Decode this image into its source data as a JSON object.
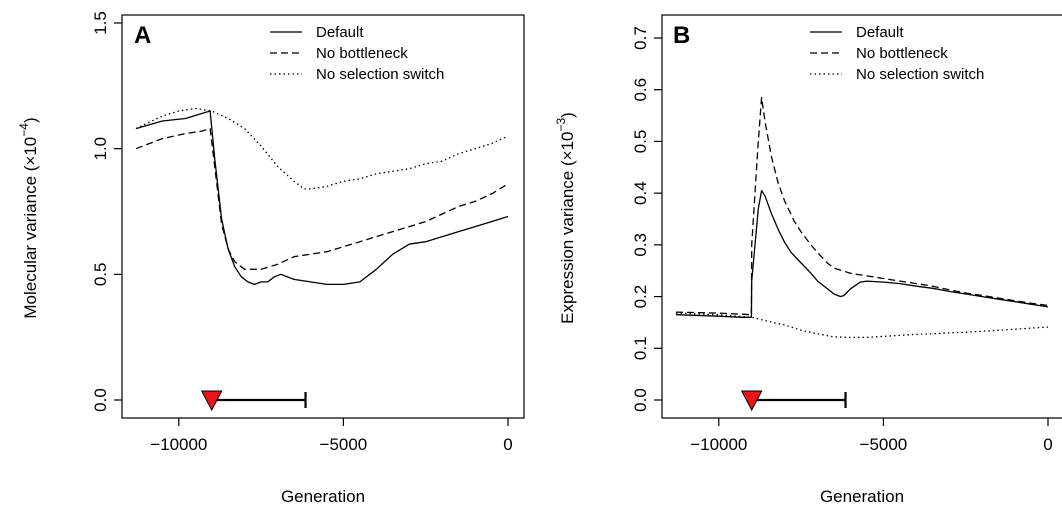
{
  "chart_data": [
    {
      "type": "line",
      "panel_label": "A",
      "xlabel": "Generation",
      "ylabel": "Molecular variance (",
      "ylabel_multiplier": "×10",
      "ylabel_exponent": "−4",
      "ylabel_close": ")",
      "xlim": [
        -11300,
        0
      ],
      "ylim": [
        0,
        1.5
      ],
      "x_ticks": [
        -10000,
        -5000,
        0
      ],
      "x_tick_labels": [
        "−10000",
        "−5000",
        "0"
      ],
      "y_ticks": [
        0,
        0.5,
        1.0,
        1.5
      ],
      "y_tick_labels": [
        "0.0",
        "0.5",
        "1.0",
        "1.5"
      ],
      "legend_position": "top-right",
      "event_marker": {
        "x": -9000,
        "y": 0
      },
      "event_interval": [
        -9000,
        -6150
      ],
      "series": [
        {
          "name": "Default",
          "style": "solid",
          "x": [
            -11300,
            -10500,
            -9800,
            -9300,
            -9050,
            -8900,
            -8700,
            -8500,
            -8300,
            -8100,
            -7900,
            -7700,
            -7500,
            -7300,
            -7100,
            -6900,
            -6500,
            -6000,
            -5500,
            -5000,
            -4500,
            -4000,
            -3500,
            -3000,
            -2500,
            -2000,
            -1500,
            -1000,
            -500,
            0
          ],
          "y": [
            1.08,
            1.11,
            1.12,
            1.14,
            1.15,
            0.95,
            0.72,
            0.6,
            0.53,
            0.49,
            0.47,
            0.46,
            0.47,
            0.47,
            0.49,
            0.5,
            0.48,
            0.47,
            0.46,
            0.46,
            0.47,
            0.52,
            0.58,
            0.62,
            0.63,
            0.65,
            0.67,
            0.69,
            0.71,
            0.73
          ]
        },
        {
          "name": "No bottleneck",
          "style": "dashed",
          "x": [
            -11300,
            -10500,
            -9800,
            -9300,
            -9050,
            -8900,
            -8700,
            -8500,
            -8300,
            -8000,
            -7500,
            -7000,
            -6500,
            -6000,
            -5500,
            -5000,
            -4500,
            -4000,
            -3500,
            -3000,
            -2500,
            -2000,
            -1500,
            -1000,
            -500,
            0
          ],
          "y": [
            1.0,
            1.04,
            1.06,
            1.07,
            1.08,
            0.92,
            0.7,
            0.6,
            0.55,
            0.52,
            0.52,
            0.54,
            0.57,
            0.58,
            0.59,
            0.61,
            0.63,
            0.65,
            0.67,
            0.69,
            0.71,
            0.74,
            0.77,
            0.79,
            0.82,
            0.86
          ]
        },
        {
          "name": "No selection switch",
          "style": "dotted",
          "x": [
            -11300,
            -10500,
            -10000,
            -9500,
            -9000,
            -8500,
            -8000,
            -7500,
            -7000,
            -6500,
            -6200,
            -6000,
            -5500,
            -5000,
            -4500,
            -4000,
            -3500,
            -3000,
            -2500,
            -2000,
            -1500,
            -1000,
            -500,
            0
          ],
          "y": [
            1.08,
            1.13,
            1.15,
            1.16,
            1.15,
            1.12,
            1.08,
            1.01,
            0.93,
            0.87,
            0.84,
            0.84,
            0.85,
            0.87,
            0.88,
            0.9,
            0.91,
            0.92,
            0.94,
            0.95,
            0.98,
            1.0,
            1.02,
            1.05
          ]
        }
      ]
    },
    {
      "type": "line",
      "panel_label": "B",
      "xlabel": "Generation",
      "ylabel": "Expression variance (",
      "ylabel_multiplier": "×10",
      "ylabel_exponent": "−3",
      "ylabel_close": ")",
      "xlim": [
        -11300,
        0
      ],
      "ylim": [
        0,
        0.7
      ],
      "x_ticks": [
        -10000,
        -5000,
        0
      ],
      "x_tick_labels": [
        "−10000",
        "−5000",
        "0"
      ],
      "y_ticks": [
        0,
        0.1,
        0.2,
        0.3,
        0.4,
        0.5,
        0.6,
        0.7
      ],
      "y_tick_labels": [
        "0.0",
        "0.1",
        "0.2",
        "0.3",
        "0.4",
        "0.5",
        "0.6",
        "0.7"
      ],
      "legend_position": "top-right",
      "event_marker": {
        "x": -9000,
        "y": 0
      },
      "event_interval": [
        -9000,
        -6150
      ],
      "series": [
        {
          "name": "Default",
          "style": "solid",
          "x": [
            -11300,
            -10000,
            -9300,
            -9010,
            -9000,
            -8900,
            -8800,
            -8700,
            -8600,
            -8400,
            -8200,
            -8000,
            -7800,
            -7500,
            -7200,
            -7000,
            -6700,
            -6500,
            -6300,
            -6200,
            -6000,
            -5700,
            -5500,
            -5000,
            -4500,
            -4000,
            -3500,
            -3000,
            -2500,
            -2000,
            -1500,
            -1000,
            -500,
            0
          ],
          "y": [
            0.165,
            0.162,
            0.16,
            0.16,
            0.23,
            0.3,
            0.37,
            0.405,
            0.395,
            0.36,
            0.33,
            0.305,
            0.285,
            0.265,
            0.245,
            0.23,
            0.215,
            0.205,
            0.2,
            0.202,
            0.215,
            0.228,
            0.23,
            0.228,
            0.225,
            0.22,
            0.216,
            0.21,
            0.205,
            0.2,
            0.195,
            0.19,
            0.185,
            0.18
          ]
        },
        {
          "name": "No bottleneck",
          "style": "dashed",
          "x": [
            -11300,
            -10000,
            -9300,
            -9010,
            -9000,
            -8900,
            -8800,
            -8700,
            -8600,
            -8400,
            -8200,
            -8000,
            -7700,
            -7500,
            -7200,
            -7000,
            -6700,
            -6500,
            -6000,
            -5500,
            -5000,
            -4500,
            -4000,
            -3500,
            -3000,
            -2500,
            -2000,
            -1500,
            -1000,
            -500,
            0
          ],
          "y": [
            0.17,
            0.168,
            0.166,
            0.165,
            0.3,
            0.4,
            0.5,
            0.585,
            0.54,
            0.47,
            0.42,
            0.385,
            0.345,
            0.325,
            0.3,
            0.285,
            0.265,
            0.255,
            0.245,
            0.24,
            0.235,
            0.23,
            0.225,
            0.22,
            0.213,
            0.207,
            0.202,
            0.197,
            0.192,
            0.187,
            0.183
          ]
        },
        {
          "name": "No selection switch",
          "style": "dotted",
          "x": [
            -11300,
            -10000,
            -9000,
            -8500,
            -8000,
            -7500,
            -7000,
            -6500,
            -6000,
            -5500,
            -5000,
            -4500,
            -4000,
            -3500,
            -3000,
            -2500,
            -2000,
            -1500,
            -1000,
            -500,
            0
          ],
          "y": [
            0.168,
            0.165,
            0.16,
            0.152,
            0.145,
            0.135,
            0.128,
            0.122,
            0.121,
            0.121,
            0.123,
            0.125,
            0.127,
            0.128,
            0.13,
            0.131,
            0.133,
            0.135,
            0.137,
            0.139,
            0.141
          ]
        }
      ]
    }
  ]
}
